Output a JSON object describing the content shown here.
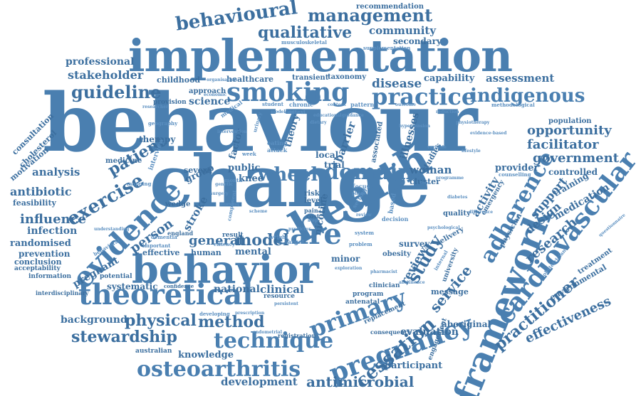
{
  "colors": {
    "primary": "#4a7fb0",
    "dark": "#3c6f9f",
    "light": "#5b8fc0"
  },
  "words": {
    "behaviour": "behaviour",
    "change": "change",
    "implementation": "implementation",
    "behavior": "behavior",
    "health": "health",
    "framework": "framework",
    "evidence": "evidence",
    "theoretical": "theoretical",
    "smoking": "smoking",
    "practice": "practice",
    "indigenous": "indigenous",
    "management": "management",
    "behavioural": "behavioural",
    "qualitative": "qualitative",
    "community": "community",
    "recommendation": "recommendation",
    "secondary": "secondary",
    "guideline": "guideline",
    "stakeholder": "stakeholder",
    "professional": "professional",
    "childhood": "childhood",
    "healthcare": "healthcare",
    "transient": "transient",
    "taxonomy": "taxonomy",
    "respiratory": "respiratory",
    "capability": "capability",
    "assessment": "assessment",
    "disease": "disease",
    "opportunity": "opportunity",
    "facilitator": "facilitator",
    "government": "government",
    "population": "population",
    "domain": "domain",
    "wheel": "wheel",
    "patient": "patient",
    "exercise": "exercise",
    "antibiotic": "antibiotic",
    "analysis": "analysis",
    "influence": "influence",
    "infection": "infection",
    "randomised": "randomised",
    "prevention": "prevention",
    "conclusion": "conclusion",
    "acceptability": "acceptability",
    "information": "information",
    "interdisciplinary": "interdisciplinary",
    "pregnant": "pregnant",
    "person": "person",
    "model": "model",
    "care": "care",
    "general": "general",
    "primary": "primary",
    "pregnancy": "pregnancy",
    "cessation": "cessation",
    "study": "study",
    "service": "service",
    "review": "review",
    "cardiovascular": "cardiovascular",
    "adherence": "adherence",
    "practitioner": "practitioner",
    "effectiveness": "effectiveness",
    "environmental": "environmental",
    "treatment": "treatment",
    "research": "research",
    "design": "design",
    "medication": "medication",
    "controlled": "controlled",
    "provider": "provider",
    "physical": "physical",
    "method": "method",
    "technique": "technique",
    "stewardship": "stewardship",
    "background": "background",
    "osteoarthritis": "osteoarthritis",
    "development": "development",
    "antimicrobial": "antimicrobial",
    "knowledge": "knowledge",
    "australian": "australian",
    "participant": "participant",
    "evaluation": "evaluation",
    "aboriginal": "aboriginal",
    "systematic": "systematic",
    "national": "national",
    "clinical": "clinical",
    "resource": "resource",
    "mental": "mental",
    "minor": "minor",
    "woman": "woman",
    "cluster": "cluster",
    "public": "public",
    "trial": "trial",
    "local": "local",
    "therapy": "therapy",
    "medicine": "medicine",
    "consultation": "consultation",
    "cholesterol": "cholesterol",
    "motivation": "motivation",
    "feasibility": "feasibility",
    "science": "science",
    "approach": "approach",
    "provision": "provision",
    "barrier": "barrier",
    "theory": "theory",
    "factor": "factor",
    "severe": "severe",
    "group": "group",
    "stroke": "stroke",
    "wedge": "wedge",
    "knee": "knee",
    "effective": "effective",
    "human": "human",
    "potential": "potential",
    "confidence": "confidence",
    "england": "england",
    "result": "result",
    "nicotine": "nicotine",
    "risk": "risk",
    "level": "level",
    "pain": "pain",
    "cost": "cost",
    "quality": "quality",
    "activity": "activity",
    "support": "support",
    "physician": "physician",
    "studies": "studies",
    "illnesses": "illnesses",
    "associated": "associated",
    "clinician": "clinician",
    "program": "program",
    "antenatal": "antenatal",
    "replacement": "replacement",
    "consequence": "consequence",
    "registration": "registration",
    "engagement": "engagement",
    "message": "message",
    "obesity": "obesity",
    "survey": "survey",
    "delivery": "delivery",
    "training": "training",
    "emergency": "emergency",
    "university": "university",
    "musculoskeletal": "musculoskeletal",
    "supplementation": "supplementation",
    "chronic": "chronic",
    "context": "context",
    "student": "student",
    "pattern": "pattern",
    "medical": "medical",
    "focus": "focus",
    "setting": "setting",
    "based": "based",
    "decision": "decision",
    "system": "system",
    "weight": "weight",
    "target": "target",
    "problem": "problem",
    "mapping": "mapping",
    "important": "important",
    "dementia": "dementia",
    "behavioral": "behavioral",
    "interview": "interview",
    "month": "month",
    "week": "week",
    "eating": "eating",
    "attack": "attack",
    "component": "component",
    "efficacy": "efficacy",
    "developing": "developing",
    "prescription": "prescription",
    "endometrial": "endometrial",
    "internal": "internal",
    "counselling": "counselling",
    "difference": "difference",
    "obstetrician": "obstetrician",
    "geography": "geography",
    "methodological": "methodological",
    "questionnaire": "questionnaire",
    "abstinence": "abstinence",
    "researcher": "researcher",
    "economic": "economic",
    "persistent": "persistent",
    "organisation": "organisation",
    "tool": "tool",
    "urinary": "urinary",
    "educational": "educational",
    "genetic": "genetic",
    "understanding": "understanding",
    "phase": "phase",
    "step": "step",
    "intervention": "intervention",
    "programme": "programme",
    "variable": "variable",
    "content": "content",
    "outcome": "outcome",
    "physiotherapy": "physiotherapy",
    "lifestyle": "lifestyle",
    "reduction": "reduction",
    "evidence_based": "evidence-based",
    "guidance": "guidance",
    "surgery": "surgery",
    "nursing": "nursing",
    "modelling": "modelling",
    "predictor": "predictor",
    "psychological": "psychological",
    "scheme": "scheme",
    "exploration": "exploration",
    "pharmacist": "pharmacist",
    "dietary": "dietary",
    "review_tool": "review",
    "diabetes": "diabetes",
    "hypertension": "hypertension"
  }
}
